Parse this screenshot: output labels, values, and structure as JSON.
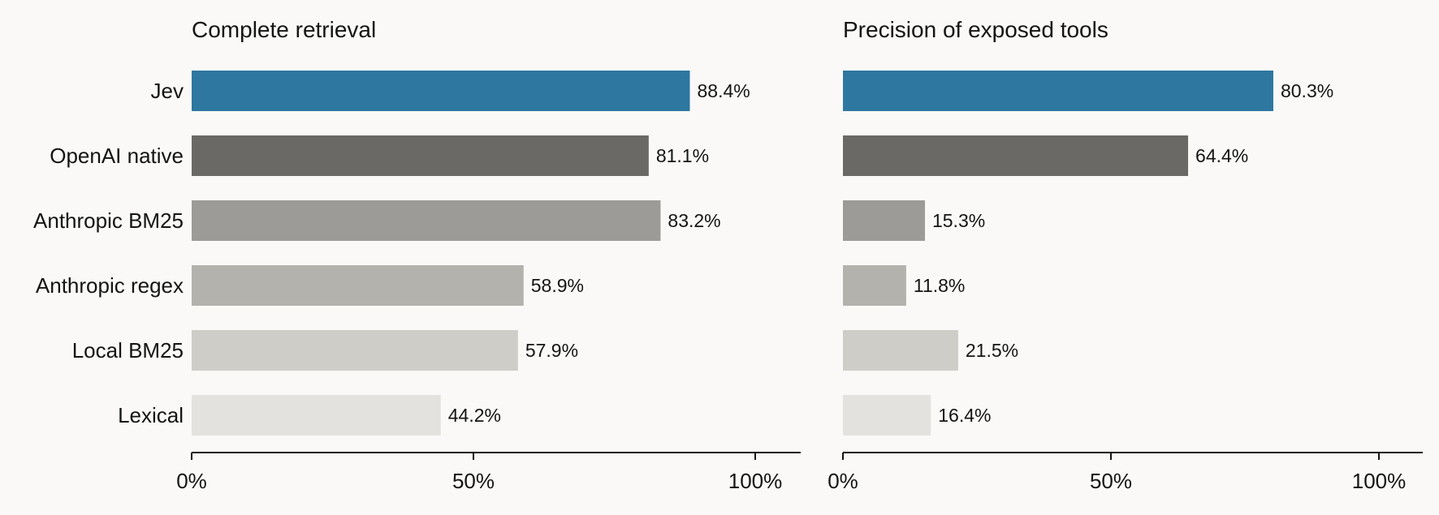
{
  "chart_data": [
    {
      "type": "bar",
      "orientation": "horizontal",
      "title": "Complete retrieval",
      "categories": [
        "Jev",
        "OpenAI native",
        "Anthropic BM25",
        "Anthropic regex",
        "Local BM25",
        "Lexical"
      ],
      "values": [
        88.4,
        81.1,
        83.2,
        58.9,
        57.9,
        44.2
      ],
      "value_labels": [
        "88.4%",
        "81.1%",
        "83.2%",
        "58.9%",
        "57.9%",
        "44.2%"
      ],
      "colors": [
        "#2e77a0",
        "#6b6965",
        "#9c9b97",
        "#b3b2ad",
        "#cfcdc8",
        "#e3e2df"
      ],
      "xlim": [
        0,
        100
      ],
      "xticks": [
        0,
        50,
        100
      ],
      "xtick_labels": [
        "0%",
        "50%",
        "100%"
      ],
      "grid": false,
      "legend": "none"
    },
    {
      "type": "bar",
      "orientation": "horizontal",
      "title": "Precision of exposed tools",
      "categories": [
        "Jev",
        "OpenAI native",
        "Anthropic BM25",
        "Anthropic regex",
        "Local BM25",
        "Lexical"
      ],
      "values": [
        80.3,
        64.4,
        15.3,
        11.8,
        21.5,
        16.4
      ],
      "value_labels": [
        "80.3%",
        "64.4%",
        "15.3%",
        "11.8%",
        "21.5%",
        "16.4%"
      ],
      "colors": [
        "#2e77a0",
        "#6b6965",
        "#9c9b97",
        "#b3b2ad",
        "#cfcdc8",
        "#e3e2df"
      ],
      "xlim": [
        0,
        100
      ],
      "xticks": [
        0,
        50,
        100
      ],
      "xtick_labels": [
        "0%",
        "50%",
        "100%"
      ],
      "grid": false,
      "legend": "none"
    }
  ]
}
